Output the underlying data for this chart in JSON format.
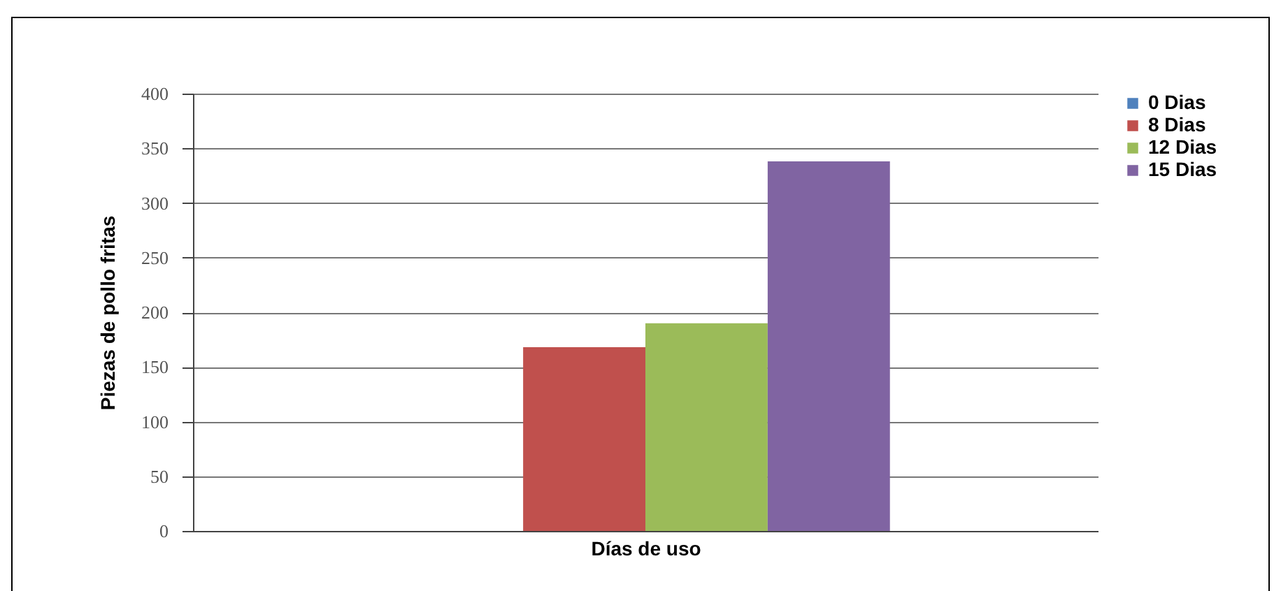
{
  "chart_data": {
    "type": "bar",
    "xlabel": "Días de uso",
    "ylabel": "Piezas de pollo fritas",
    "categories": [
      null
    ],
    "series": [
      {
        "name": "0 Dias",
        "color": "#4f81bd",
        "values": [
          0
        ]
      },
      {
        "name": "8 Dias",
        "color": "#c0504d",
        "values": [
          168
        ]
      },
      {
        "name": "12 Dias",
        "color": "#9bbb59",
        "values": [
          190
        ]
      },
      {
        "name": "15 Dias",
        "color": "#8064a2",
        "values": [
          338
        ]
      }
    ],
    "ylim": [
      0,
      400
    ],
    "yticks": [
      0,
      50,
      100,
      150,
      200,
      250,
      300,
      350,
      400
    ],
    "grid": "y",
    "legend": "right"
  }
}
